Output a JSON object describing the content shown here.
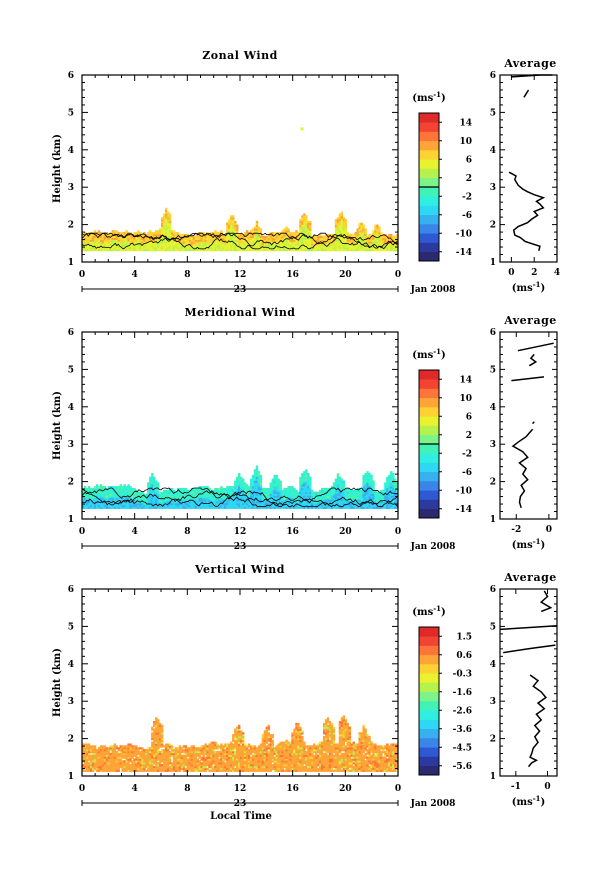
{
  "figure": {
    "ylabel": "Height (km)",
    "xlabel": "Local Time",
    "date_label": "Jan 2008",
    "day_label": "23",
    "unit_label": "(ms",
    "unit_sup": "-1",
    "average_title": "Average"
  },
  "chart_data": [
    {
      "type": "heatmap",
      "title": "Zonal Wind",
      "xlabel": "",
      "ylabel": "Height (km)",
      "x_ticks": [
        "0",
        "4",
        "8",
        "12",
        "16",
        "20",
        "0"
      ],
      "xlim": [
        0,
        24
      ],
      "ylim": [
        1,
        6
      ],
      "y_ticks": [
        "1",
        "2",
        "3",
        "4",
        "5",
        "6"
      ],
      "colorbar": {
        "ticks": [
          "14",
          "10",
          "6",
          "2",
          "-2",
          "-6",
          "-10",
          "-14"
        ],
        "range": [
          -16,
          16
        ],
        "colors": [
          "#2b2a70",
          "#2c3aa0",
          "#2f58d3",
          "#3a86e8",
          "#37b0f0",
          "#2fd8f2",
          "#2ff0e0",
          "#40f2b6",
          "#7cf48a",
          "#b6f24e",
          "#e8f22e",
          "#ffd233",
          "#ffa437",
          "#ff7438",
          "#f24333",
          "#e02a2a"
        ],
        "zero_line": true
      },
      "field": {
        "base": 1.3,
        "mean_top": 1.72,
        "amplitude": 0.13,
        "spikes": [
          [
            6.3,
            2.4
          ],
          [
            11.3,
            2.25
          ],
          [
            13.2,
            2.05
          ],
          [
            15.4,
            1.95
          ],
          [
            16.8,
            2.3
          ],
          [
            19.6,
            2.35
          ],
          [
            21.1,
            2.05
          ],
          [
            22.3,
            2.0
          ]
        ],
        "isolated": [
          [
            16.6,
            4.6
          ]
        ],
        "value_main": 4.5,
        "value_var": 3.0,
        "mode": "zonal"
      },
      "average": {
        "xlim": [
          -1,
          4
        ],
        "x_ticks": [
          "0",
          "2",
          "4"
        ],
        "xlabel": "(ms",
        "segments": [
          [
            [
              2.4,
              1.3
            ],
            [
              2.5,
              1.42
            ],
            [
              1.2,
              1.55
            ],
            [
              0.8,
              1.65
            ],
            [
              0.3,
              1.72
            ],
            [
              0.2,
              1.85
            ],
            [
              0.6,
              1.95
            ],
            [
              1.4,
              2.05
            ],
            [
              1.8,
              2.15
            ],
            [
              2.3,
              2.25
            ],
            [
              2.0,
              2.35
            ],
            [
              2.8,
              2.45
            ],
            [
              2.5,
              2.55
            ],
            [
              2.2,
              2.62
            ],
            [
              2.8,
              2.72
            ],
            [
              2.0,
              2.8
            ],
            [
              1.4,
              2.88
            ],
            [
              1.0,
              2.95
            ],
            [
              0.6,
              3.05
            ],
            [
              0.3,
              3.2
            ],
            [
              0.4,
              3.3
            ],
            [
              -0.2,
              3.4
            ]
          ],
          [
            [
              1.1,
              5.4
            ],
            [
              1.3,
              5.5
            ],
            [
              1.5,
              5.6
            ]
          ],
          [
            [
              0.0,
              5.95
            ],
            [
              2.6,
              6.0
            ],
            [
              2.0,
              6.08
            ],
            [
              2.2,
              6.18
            ],
            [
              1.9,
              6.28
            ],
            [
              2.9,
              6.38
            ],
            [
              3.3,
              6.48
            ],
            [
              2.4,
              6.58
            ],
            [
              3.6,
              6.68
            ],
            [
              2.8,
              6.8
            ],
            [
              3.5,
              6.9
            ]
          ]
        ]
      }
    },
    {
      "type": "heatmap",
      "title": "Meridional Wind",
      "xlabel": "",
      "ylabel": "Height (km)",
      "x_ticks": [
        "0",
        "4",
        "8",
        "12",
        "16",
        "20",
        "0"
      ],
      "xlim": [
        0,
        24
      ],
      "ylim": [
        1,
        6
      ],
      "y_ticks": [
        "1",
        "2",
        "3",
        "4",
        "5",
        "6"
      ],
      "colorbar": {
        "ticks": [
          "14",
          "10",
          "6",
          "2",
          "-2",
          "-6",
          "-10",
          "-14"
        ],
        "range": [
          -16,
          16
        ],
        "colors": [
          "#2b2a70",
          "#2c3aa0",
          "#2f58d3",
          "#3a86e8",
          "#37b0f0",
          "#2fd8f2",
          "#2ff0e0",
          "#40f2b6",
          "#7cf48a",
          "#b6f24e",
          "#e8f22e",
          "#ffd233",
          "#ffa437",
          "#ff7438",
          "#f24333",
          "#e02a2a"
        ],
        "zero_line": true
      },
      "field": {
        "base": 1.28,
        "mean_top": 1.78,
        "amplitude": 0.15,
        "spikes": [
          [
            5.3,
            2.2
          ],
          [
            11.9,
            2.2
          ],
          [
            13.2,
            2.35
          ],
          [
            14.6,
            2.2
          ],
          [
            16.9,
            2.35
          ],
          [
            19.4,
            2.2
          ],
          [
            21.6,
            2.3
          ],
          [
            23.4,
            2.25
          ]
        ],
        "isolated": [],
        "value_main": -5.5,
        "value_var": 3.0,
        "mode": "meridional"
      },
      "average": {
        "xlim": [
          -3,
          0.5
        ],
        "x_ticks": [
          "-2",
          "0"
        ],
        "xlabel": "(ms",
        "segments": [
          [
            [
              -1.7,
              1.3
            ],
            [
              -1.8,
              1.45
            ],
            [
              -1.75,
              1.6
            ],
            [
              -1.5,
              1.75
            ],
            [
              -1.7,
              1.9
            ],
            [
              -1.3,
              2.05
            ],
            [
              -1.6,
              2.2
            ],
            [
              -1.4,
              2.35
            ],
            [
              -1.8,
              2.5
            ],
            [
              -1.3,
              2.65
            ],
            [
              -1.6,
              2.8
            ],
            [
              -2.2,
              2.95
            ],
            [
              -1.9,
              3.05
            ],
            [
              -1.4,
              3.2
            ],
            [
              -1.2,
              3.3
            ],
            [
              -1.0,
              3.4
            ]
          ],
          [
            [
              -1.0,
              3.55
            ],
            [
              -0.9,
              3.6
            ]
          ],
          [
            [
              -2.3,
              4.7
            ],
            [
              -0.3,
              4.8
            ]
          ],
          [
            [
              -1.2,
              5.1
            ],
            [
              -0.8,
              5.2
            ],
            [
              -1.1,
              5.3
            ],
            [
              -0.9,
              5.4
            ]
          ],
          [
            [
              -1.9,
              5.5
            ],
            [
              0.3,
              5.7
            ]
          ]
        ]
      }
    },
    {
      "type": "heatmap",
      "title": "Vertical Wind",
      "xlabel": "Local Time",
      "ylabel": "Height (km)",
      "x_ticks": [
        "0",
        "4",
        "8",
        "12",
        "16",
        "20",
        "0"
      ],
      "xlim": [
        0,
        24
      ],
      "ylim": [
        1,
        6
      ],
      "y_ticks": [
        "1",
        "2",
        "3",
        "4",
        "5",
        "6"
      ],
      "colorbar": {
        "ticks": [
          "1.5",
          "0.6",
          "-0.3",
          "-1.6",
          "-2.6",
          "-3.6",
          "-4.5",
          "-5.6"
        ],
        "range": [
          -6,
          2
        ],
        "colors": [
          "#2b2a70",
          "#2c3aa0",
          "#2f58d3",
          "#3a86e8",
          "#37b0f0",
          "#2fd8f2",
          "#2ff0e0",
          "#40f2b6",
          "#7cf48a",
          "#b6f24e",
          "#e8f22e",
          "#ffd233",
          "#ffa437",
          "#ff7438",
          "#f24333",
          "#e02a2a"
        ],
        "zero_line": false
      },
      "field": {
        "base": 1.12,
        "mean_top": 1.82,
        "amplitude": 0.12,
        "spikes": [
          [
            5.6,
            2.55
          ],
          [
            11.8,
            2.35
          ],
          [
            14.0,
            2.35
          ],
          [
            16.3,
            2.4
          ],
          [
            18.6,
            2.55
          ],
          [
            19.8,
            2.6
          ],
          [
            21.3,
            2.3
          ]
        ],
        "isolated": [],
        "value_main": 0.2,
        "value_var": 0.45,
        "mode": "vertical"
      },
      "average": {
        "xlim": [
          -1.5,
          0.3
        ],
        "x_ticks": [
          "-1",
          "0"
        ],
        "xlabel": "(ms",
        "segments": [
          [
            [
              -0.6,
              1.25
            ],
            [
              -0.5,
              1.35
            ],
            [
              -0.35,
              1.42
            ],
            [
              -0.55,
              1.5
            ],
            [
              -0.5,
              1.6
            ],
            [
              -0.45,
              1.75
            ],
            [
              -0.3,
              1.9
            ],
            [
              -0.4,
              2.05
            ],
            [
              -0.25,
              2.2
            ],
            [
              -0.4,
              2.35
            ],
            [
              -0.2,
              2.5
            ],
            [
              -0.35,
              2.65
            ],
            [
              -0.1,
              2.8
            ],
            [
              -0.3,
              2.95
            ],
            [
              -0.05,
              3.1
            ],
            [
              -0.2,
              3.25
            ],
            [
              -0.45,
              3.4
            ],
            [
              -0.3,
              3.55
            ],
            [
              -0.55,
              3.7
            ]
          ],
          [
            [
              -1.4,
              4.3
            ],
            [
              -0.6,
              4.4
            ],
            [
              0.25,
              4.5
            ]
          ],
          [
            [
              -1.5,
              4.92
            ],
            [
              0.3,
              5.02
            ]
          ],
          [
            [
              -0.2,
              5.4
            ],
            [
              0.1,
              5.5
            ],
            [
              -0.2,
              5.65
            ],
            [
              0.0,
              5.8
            ],
            [
              -0.1,
              5.95
            ]
          ]
        ]
      }
    }
  ]
}
